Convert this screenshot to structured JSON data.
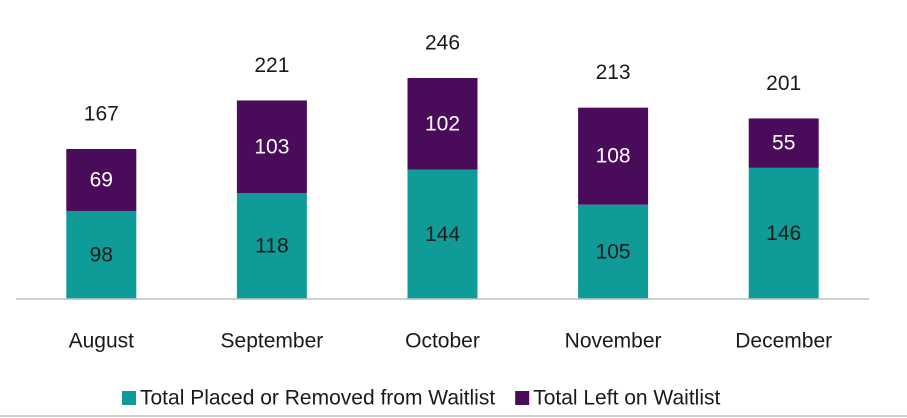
{
  "chart_data": {
    "type": "stacked_bar",
    "categories": [
      "August",
      "September",
      "October",
      "November",
      "December"
    ],
    "series": [
      {
        "name": "Total Placed or Removed from Waitlist",
        "color": "#0f9b97",
        "values": [
          98,
          118,
          144,
          105,
          146
        ]
      },
      {
        "name": "Total Left on Waitlist",
        "color": "#4b0b5b",
        "values": [
          69,
          103,
          102,
          108,
          55
        ]
      }
    ],
    "totals": [
      167,
      221,
      246,
      213,
      201
    ],
    "ylim": [
      0,
      300
    ],
    "legend": "bottom"
  }
}
